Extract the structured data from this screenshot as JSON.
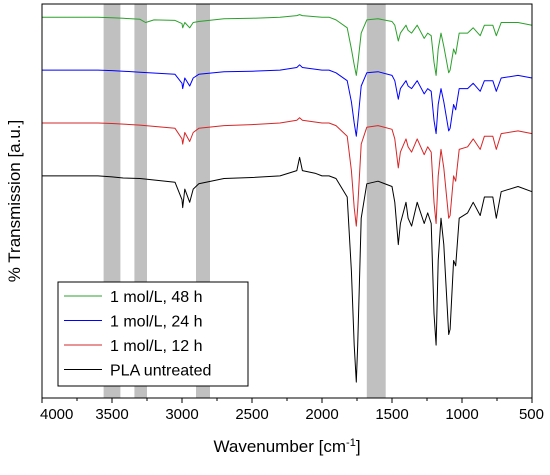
{
  "chart_data": {
    "type": "line",
    "title": "",
    "xlabel": "Wavenumber [cm",
    "xlabel_superscript": "-1",
    "xlabel_suffix": "]",
    "ylabel": "% Transmission [a.u.]",
    "xlim": [
      4000,
      500
    ],
    "x_reversed": true,
    "grid": false,
    "x_ticks": [
      "4000",
      "3500",
      "3000",
      "2500",
      "2000",
      "1500",
      "1000",
      "500"
    ],
    "y_ticks_shown": false,
    "legend_position": "bottom-left",
    "highlight_bands": [
      {
        "from": 3560,
        "to": 3440
      },
      {
        "from": 3340,
        "to": 3250
      },
      {
        "from": 2900,
        "to": 2800
      },
      {
        "from": 1680,
        "to": 1545
      }
    ],
    "band_color": "#c0c0c0",
    "series": [
      {
        "name": "1 mol/L, 48 h",
        "color": "#2ca02c",
        "offset": 3.0,
        "points": [
          [
            4000,
            0.0
          ],
          [
            3600,
            0.0
          ],
          [
            3500,
            -0.01
          ],
          [
            3420,
            -0.02
          ],
          [
            3300,
            -0.04
          ],
          [
            3260,
            -0.1
          ],
          [
            3200,
            -0.05
          ],
          [
            3050,
            -0.06
          ],
          [
            3000,
            -0.12
          ],
          [
            2995,
            -0.2
          ],
          [
            2980,
            -0.1
          ],
          [
            2945,
            -0.2
          ],
          [
            2920,
            -0.1
          ],
          [
            2880,
            -0.08
          ],
          [
            2700,
            -0.03
          ],
          [
            2500,
            -0.02
          ],
          [
            2300,
            0.0
          ],
          [
            2180,
            0.03
          ],
          [
            2160,
            0.05
          ],
          [
            2140,
            0.03
          ],
          [
            2000,
            0.0
          ],
          [
            1950,
            0.0
          ],
          [
            1900,
            -0.05
          ],
          [
            1820,
            -0.2
          ],
          [
            1790,
            -0.6
          ],
          [
            1770,
            -0.9
          ],
          [
            1755,
            -1.1
          ],
          [
            1745,
            -0.9
          ],
          [
            1720,
            -0.3
          ],
          [
            1680,
            -0.05
          ],
          [
            1600,
            -0.03
          ],
          [
            1500,
            -0.08
          ],
          [
            1480,
            -0.15
          ],
          [
            1455,
            -0.45
          ],
          [
            1440,
            -0.3
          ],
          [
            1400,
            -0.15
          ],
          [
            1385,
            -0.25
          ],
          [
            1360,
            -0.3
          ],
          [
            1320,
            -0.15
          ],
          [
            1270,
            -0.4
          ],
          [
            1245,
            -0.3
          ],
          [
            1220,
            -0.35
          ],
          [
            1200,
            -0.85
          ],
          [
            1185,
            -1.1
          ],
          [
            1170,
            -0.6
          ],
          [
            1150,
            -0.3
          ],
          [
            1130,
            -0.55
          ],
          [
            1095,
            -1.05
          ],
          [
            1085,
            -1.0
          ],
          [
            1060,
            -0.6
          ],
          [
            1045,
            -0.7
          ],
          [
            1020,
            -0.3
          ],
          [
            960,
            -0.3
          ],
          [
            920,
            -0.2
          ],
          [
            870,
            -0.35
          ],
          [
            840,
            -0.15
          ],
          [
            780,
            -0.15
          ],
          [
            755,
            -0.35
          ],
          [
            720,
            -0.1
          ],
          [
            600,
            -0.1
          ],
          [
            500,
            -0.15
          ]
        ]
      },
      {
        "name": "1 mol/L, 24 h",
        "color": "#0000ff",
        "offset": 2.0,
        "points": [
          [
            4000,
            0.0
          ],
          [
            3600,
            0.0
          ],
          [
            3500,
            -0.01
          ],
          [
            3420,
            -0.02
          ],
          [
            3300,
            -0.04
          ],
          [
            3050,
            -0.08
          ],
          [
            3000,
            -0.25
          ],
          [
            2995,
            -0.35
          ],
          [
            2980,
            -0.15
          ],
          [
            2945,
            -0.3
          ],
          [
            2920,
            -0.15
          ],
          [
            2880,
            -0.08
          ],
          [
            2700,
            -0.03
          ],
          [
            2500,
            -0.02
          ],
          [
            2300,
            0.0
          ],
          [
            2180,
            0.05
          ],
          [
            2160,
            0.1
          ],
          [
            2140,
            0.05
          ],
          [
            2000,
            0.0
          ],
          [
            1950,
            0.0
          ],
          [
            1900,
            -0.05
          ],
          [
            1820,
            -0.2
          ],
          [
            1790,
            -0.6
          ],
          [
            1770,
            -1.0
          ],
          [
            1755,
            -1.25
          ],
          [
            1745,
            -1.0
          ],
          [
            1720,
            -0.3
          ],
          [
            1680,
            -0.05
          ],
          [
            1600,
            -0.03
          ],
          [
            1500,
            -0.1
          ],
          [
            1480,
            -0.2
          ],
          [
            1455,
            -0.55
          ],
          [
            1440,
            -0.35
          ],
          [
            1400,
            -0.2
          ],
          [
            1385,
            -0.3
          ],
          [
            1360,
            -0.35
          ],
          [
            1320,
            -0.2
          ],
          [
            1270,
            -0.45
          ],
          [
            1245,
            -0.35
          ],
          [
            1220,
            -0.4
          ],
          [
            1200,
            -0.95
          ],
          [
            1185,
            -1.2
          ],
          [
            1170,
            -0.65
          ],
          [
            1150,
            -0.35
          ],
          [
            1130,
            -0.6
          ],
          [
            1095,
            -1.15
          ],
          [
            1085,
            -1.1
          ],
          [
            1060,
            -0.65
          ],
          [
            1045,
            -0.75
          ],
          [
            1020,
            -0.35
          ],
          [
            960,
            -0.35
          ],
          [
            920,
            -0.25
          ],
          [
            870,
            -0.4
          ],
          [
            840,
            -0.2
          ],
          [
            780,
            -0.2
          ],
          [
            755,
            -0.4
          ],
          [
            720,
            -0.15
          ],
          [
            600,
            -0.1
          ],
          [
            500,
            -0.15
          ]
        ]
      },
      {
        "name": "1 mol/L, 12 h",
        "color": "#d62728",
        "offset": 1.0,
        "points": [
          [
            4000,
            0.0
          ],
          [
            3600,
            0.0
          ],
          [
            3500,
            -0.01
          ],
          [
            3420,
            -0.02
          ],
          [
            3300,
            -0.04
          ],
          [
            3050,
            -0.1
          ],
          [
            3000,
            -0.3
          ],
          [
            2995,
            -0.4
          ],
          [
            2980,
            -0.18
          ],
          [
            2945,
            -0.35
          ],
          [
            2920,
            -0.18
          ],
          [
            2880,
            -0.1
          ],
          [
            2700,
            -0.05
          ],
          [
            2500,
            -0.03
          ],
          [
            2300,
            0.0
          ],
          [
            2180,
            0.05
          ],
          [
            2160,
            0.1
          ],
          [
            2140,
            0.05
          ],
          [
            2000,
            0.0
          ],
          [
            1950,
            0.0
          ],
          [
            1900,
            -0.05
          ],
          [
            1820,
            -0.25
          ],
          [
            1790,
            -0.9
          ],
          [
            1770,
            -1.6
          ],
          [
            1755,
            -1.95
          ],
          [
            1745,
            -1.6
          ],
          [
            1720,
            -0.4
          ],
          [
            1680,
            -0.08
          ],
          [
            1600,
            -0.05
          ],
          [
            1500,
            -0.12
          ],
          [
            1480,
            -0.3
          ],
          [
            1455,
            -0.85
          ],
          [
            1440,
            -0.55
          ],
          [
            1400,
            -0.3
          ],
          [
            1385,
            -0.45
          ],
          [
            1360,
            -0.55
          ],
          [
            1320,
            -0.3
          ],
          [
            1270,
            -0.6
          ],
          [
            1245,
            -0.45
          ],
          [
            1220,
            -0.55
          ],
          [
            1200,
            -1.5
          ],
          [
            1185,
            -1.9
          ],
          [
            1170,
            -1.0
          ],
          [
            1150,
            -0.5
          ],
          [
            1130,
            -0.85
          ],
          [
            1095,
            -1.8
          ],
          [
            1085,
            -1.75
          ],
          [
            1060,
            -1.0
          ],
          [
            1045,
            -1.1
          ],
          [
            1020,
            -0.5
          ],
          [
            960,
            -0.45
          ],
          [
            920,
            -0.3
          ],
          [
            870,
            -0.5
          ],
          [
            840,
            -0.25
          ],
          [
            780,
            -0.25
          ],
          [
            755,
            -0.5
          ],
          [
            720,
            -0.2
          ],
          [
            600,
            -0.15
          ],
          [
            500,
            -0.2
          ]
        ]
      },
      {
        "name": "PLA untreated",
        "color": "#000000",
        "offset": 0.0,
        "points": [
          [
            4000,
            0.0
          ],
          [
            3600,
            0.0
          ],
          [
            3500,
            -0.02
          ],
          [
            3420,
            -0.04
          ],
          [
            3300,
            -0.05
          ],
          [
            3050,
            -0.12
          ],
          [
            3000,
            -0.45
          ],
          [
            2995,
            -0.6
          ],
          [
            2980,
            -0.25
          ],
          [
            2945,
            -0.5
          ],
          [
            2920,
            -0.25
          ],
          [
            2880,
            -0.15
          ],
          [
            2700,
            -0.05
          ],
          [
            2500,
            -0.03
          ],
          [
            2300,
            0.0
          ],
          [
            2180,
            0.1
          ],
          [
            2160,
            0.35
          ],
          [
            2140,
            0.1
          ],
          [
            2050,
            0.05
          ],
          [
            2000,
            0.0
          ],
          [
            1950,
            0.0
          ],
          [
            1900,
            -0.05
          ],
          [
            1820,
            -0.4
          ],
          [
            1790,
            -1.8
          ],
          [
            1770,
            -3.2
          ],
          [
            1755,
            -3.9
          ],
          [
            1745,
            -3.2
          ],
          [
            1720,
            -0.8
          ],
          [
            1680,
            -0.15
          ],
          [
            1600,
            -0.1
          ],
          [
            1500,
            -0.2
          ],
          [
            1480,
            -0.5
          ],
          [
            1455,
            -1.3
          ],
          [
            1440,
            -0.9
          ],
          [
            1400,
            -0.5
          ],
          [
            1385,
            -0.8
          ],
          [
            1360,
            -0.95
          ],
          [
            1320,
            -0.5
          ],
          [
            1270,
            -0.9
          ],
          [
            1245,
            -0.7
          ],
          [
            1220,
            -0.9
          ],
          [
            1200,
            -2.6
          ],
          [
            1185,
            -3.2
          ],
          [
            1170,
            -1.6
          ],
          [
            1150,
            -0.8
          ],
          [
            1130,
            -1.3
          ],
          [
            1095,
            -3.0
          ],
          [
            1085,
            -2.9
          ],
          [
            1060,
            -1.6
          ],
          [
            1045,
            -1.7
          ],
          [
            1020,
            -0.8
          ],
          [
            960,
            -0.7
          ],
          [
            920,
            -0.5
          ],
          [
            870,
            -0.75
          ],
          [
            840,
            -0.4
          ],
          [
            780,
            -0.4
          ],
          [
            755,
            -0.8
          ],
          [
            720,
            -0.3
          ],
          [
            600,
            -0.2
          ],
          [
            500,
            -0.3
          ]
        ]
      }
    ]
  }
}
